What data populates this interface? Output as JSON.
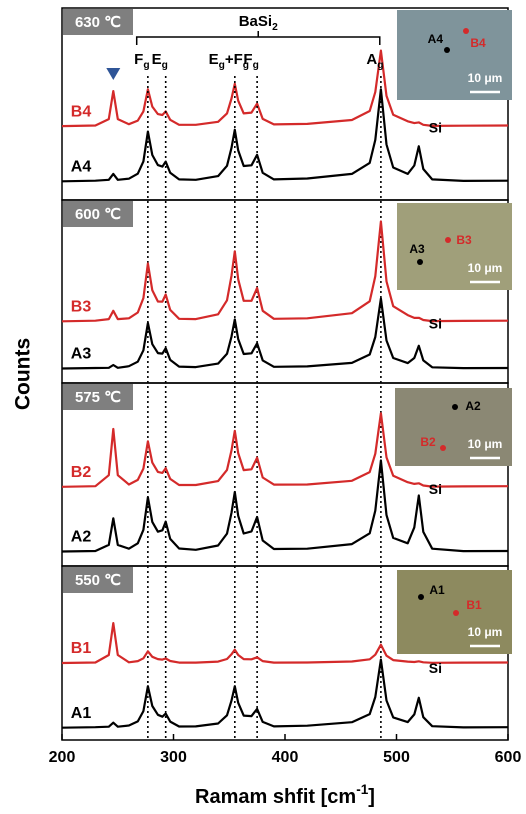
{
  "chart_data": [
    {
      "type": "line",
      "title": "630 ℃",
      "xlim": [
        200,
        600
      ],
      "ylim": [
        0,
        100
      ],
      "x": [
        200,
        230,
        242,
        246,
        250,
        260,
        268,
        273,
        277,
        281,
        286,
        290,
        293,
        297,
        305,
        320,
        340,
        348,
        352,
        355,
        358,
        363,
        370,
        375,
        380,
        390,
        420,
        460,
        476,
        481,
        486,
        491,
        497,
        510,
        516,
        520,
        524,
        532,
        560,
        600
      ],
      "series": [
        {
          "name": "B4",
          "color": "#d42a2a",
          "values": [
            38,
            38.3,
            41.8,
            57,
            41.8,
            39,
            41,
            46,
            58,
            48.6,
            44.5,
            44,
            46,
            41.4,
            38.7,
            38.7,
            40.3,
            44.9,
            53,
            61,
            51.8,
            44.9,
            45.3,
            50.2,
            41.9,
            38.9,
            39.2,
            41.3,
            46.2,
            56.5,
            79,
            54.4,
            44.2,
            40.6,
            39.6,
            40,
            38.7,
            38.1,
            38.2,
            38.3
          ]
        },
        {
          "name": "A4",
          "color": "#000000",
          "values": [
            8,
            8.3,
            8.8,
            12,
            8.8,
            9.4,
            12.1,
            18.8,
            35,
            22.3,
            16.8,
            16,
            18.7,
            12.6,
            9,
            8.8,
            10.8,
            16.4,
            26.2,
            36,
            24.8,
            16.3,
            16.7,
            22.4,
            12.6,
            9,
            9.5,
            12,
            18,
            30.5,
            58,
            28,
            15.5,
            12,
            16.6,
            27,
            14.7,
            9,
            8.2,
            8.3
          ]
        }
      ],
      "peak_label": {
        "text": "Si",
        "x": 520
      },
      "group_label": {
        "parts": [
          "BaSi",
          "2"
        ],
        "from": 267,
        "to": 485
      },
      "marker_x": 246,
      "marker_color": "#2f5597",
      "reference_lines": [
        {
          "x": 277,
          "label": [
            "F",
            "g"
          ]
        },
        {
          "x": 293,
          "label": [
            "E",
            "g"
          ]
        },
        {
          "x": 355,
          "label": [
            "E",
            "g",
            "+F",
            "g"
          ]
        },
        {
          "x": 375,
          "label": [
            "F",
            "g"
          ]
        },
        {
          "x": 486,
          "label": [
            "A",
            "g"
          ]
        }
      ],
      "inset": {
        "points": [
          {
            "label": "A4",
            "color": "#000000"
          },
          {
            "label": "B4",
            "color": "#d42a2a"
          }
        ],
        "scale_label": "10 μm"
      }
    },
    {
      "type": "line",
      "title": "600 ℃",
      "xlim": [
        200,
        600
      ],
      "ylim": [
        0,
        100
      ],
      "x": [
        200,
        230,
        242,
        246,
        250,
        260,
        268,
        273,
        277,
        281,
        286,
        290,
        293,
        297,
        305,
        320,
        340,
        348,
        352,
        355,
        358,
        363,
        370,
        375,
        380,
        390,
        420,
        460,
        476,
        481,
        486,
        491,
        497,
        510,
        516,
        520,
        524,
        532,
        560,
        600
      ],
      "series": [
        {
          "name": "B3",
          "color": "#d42a2a",
          "values": [
            33,
            33.3,
            34.2,
            39,
            34.2,
            34.7,
            38,
            46.2,
            66,
            50.7,
            44.3,
            44.2,
            48.3,
            39.5,
            34.4,
            34.2,
            37,
            45,
            59,
            73,
            57,
            44.7,
            44.7,
            52,
            39,
            34.4,
            34.7,
            37.6,
            44.4,
            58.7,
            90,
            55.8,
            41.6,
            36.5,
            34.9,
            35,
            33.7,
            33.1,
            33.2,
            33.3
          ]
        },
        {
          "name": "A3",
          "color": "#000000",
          "values": [
            6,
            6.3,
            6.4,
            8,
            6.4,
            7.3,
            9.9,
            16.4,
            32,
            19.9,
            14.8,
            14.5,
            17.6,
            10.9,
            7.1,
            6.8,
            8.8,
            14.4,
            24.2,
            34,
            22.8,
            14.3,
            14.7,
            20.4,
            10.6,
            7,
            7.2,
            9.2,
            14,
            24,
            46,
            22,
            12,
            9.1,
            12,
            19,
            10.6,
            6.7,
            6.2,
            6.3
          ]
        }
      ],
      "peak_label": {
        "text": "Si",
        "x": 520
      },
      "inset": {
        "points": [
          {
            "label": "A3",
            "color": "#000000"
          },
          {
            "label": "B3",
            "color": "#d42a2a"
          }
        ],
        "scale_label": "10 μm"
      }
    },
    {
      "type": "line",
      "title": "575 ℃",
      "xlim": [
        200,
        600
      ],
      "ylim": [
        0,
        100
      ],
      "x": [
        200,
        230,
        242,
        246,
        250,
        260,
        268,
        273,
        277,
        281,
        286,
        290,
        293,
        297,
        305,
        320,
        340,
        348,
        352,
        355,
        358,
        363,
        370,
        375,
        380,
        390,
        420,
        460,
        476,
        481,
        486,
        491,
        497,
        510,
        516,
        520,
        524,
        532,
        560,
        600
      ],
      "series": [
        {
          "name": "B2",
          "color": "#d42a2a",
          "values": [
            43,
            43.3,
            49.6,
            76,
            49.6,
            44.3,
            46.9,
            53.4,
            69,
            56.8,
            51.5,
            50.9,
            53.6,
            47.5,
            44,
            44,
            46.2,
            52.6,
            63.8,
            75,
            62.2,
            52.5,
            53,
            59.6,
            48.3,
            44.2,
            44.3,
            46.4,
            51.4,
            61.9,
            85,
            59.8,
            49.3,
            45.6,
            44.6,
            45,
            43.7,
            43.1,
            43.2,
            43.3
          ]
        },
        {
          "name": "A2",
          "color": "#000000",
          "values": [
            6,
            6.3,
            9.8,
            25,
            9.8,
            7.6,
            10.7,
            18.4,
            37,
            22.9,
            17.3,
            18.1,
            23.1,
            13.2,
            7.7,
            7,
            9.4,
            16.2,
            28.1,
            40,
            26.4,
            16.3,
            17.5,
            25.7,
            12.3,
            7.4,
            7.6,
            10.2,
            16.4,
            29.4,
            58,
            26.8,
            13.8,
            10.7,
            19.8,
            38,
            17.2,
            7.6,
            6.2,
            6.3
          ]
        }
      ],
      "peak_label": {
        "text": "Si",
        "x": 520
      },
      "inset": {
        "points": [
          {
            "label": "A2",
            "color": "#000000"
          },
          {
            "label": "B2",
            "color": "#d42a2a"
          }
        ],
        "scale_label": "10 μm"
      }
    },
    {
      "type": "line",
      "title": "550 ℃",
      "xlim": [
        200,
        600
      ],
      "ylim": [
        0,
        100
      ],
      "x": [
        200,
        230,
        242,
        246,
        250,
        260,
        268,
        273,
        277,
        281,
        286,
        290,
        293,
        297,
        305,
        320,
        340,
        348,
        352,
        355,
        358,
        363,
        370,
        375,
        380,
        390,
        420,
        460,
        476,
        481,
        486,
        491,
        497,
        510,
        516,
        520,
        524,
        532,
        560,
        600
      ],
      "series": [
        {
          "name": "B1",
          "color": "#d42a2a",
          "values": [
            44,
            44.3,
            48.8,
            68,
            48.8,
            44.4,
            45.1,
            46.8,
            51,
            47.7,
            46.3,
            46,
            46.7,
            45.2,
            44.2,
            44.2,
            44.8,
            46.4,
            49.2,
            52,
            48.8,
            46.3,
            46.2,
            47.4,
            45.1,
            44.2,
            44.3,
            44.9,
            46.2,
            49,
            55,
            48.4,
            45.7,
            44.8,
            44.6,
            45,
            44.4,
            44.1,
            44.2,
            44.3
          ]
        },
        {
          "name": "A1",
          "color": "#000000",
          "values": [
            5,
            5.3,
            5.6,
            8,
            5.6,
            6.3,
            8.8,
            15,
            30,
            18.1,
            12.8,
            11.6,
            13.5,
            8.7,
            5.7,
            5.8,
            7.5,
            12.5,
            21.3,
            30,
            20,
            12.3,
            12,
            16.3,
            8.5,
            5.8,
            6.2,
            8.3,
            13.2,
            23.5,
            46,
            21.4,
            11.2,
            8.4,
            13,
            23,
            11.3,
            5.9,
            5.2,
            5.3
          ]
        }
      ],
      "peak_label": {
        "text": "Si",
        "x": 520
      },
      "inset": {
        "points": [
          {
            "label": "A1",
            "color": "#000000"
          },
          {
            "label": "B1",
            "color": "#d42a2a"
          }
        ],
        "scale_label": "10 μm"
      },
      "xticks": [
        200,
        300,
        400,
        500,
        600
      ],
      "x_label": [
        "Ramam shfit [cm",
        "-1",
        "]"
      ],
      "y_label": "Counts"
    }
  ]
}
